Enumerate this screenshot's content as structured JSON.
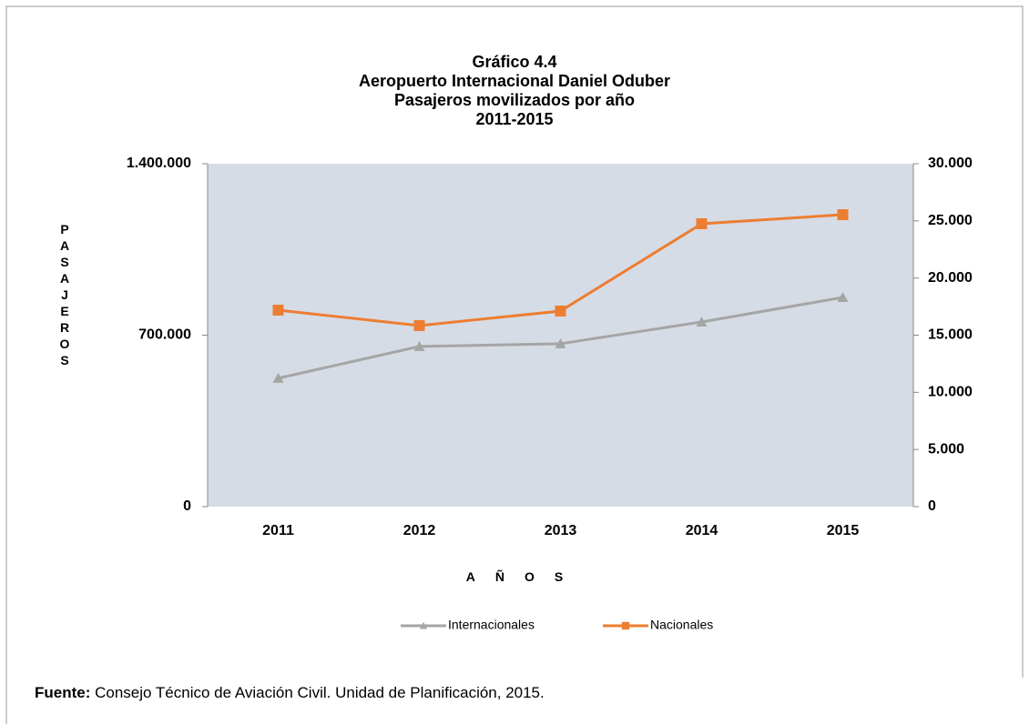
{
  "chart_data": {
    "type": "line",
    "title": [
      "Gráfico 4.4",
      "Aeropuerto Internacional Daniel Oduber",
      "Pasajeros movilizados por año",
      "2011-2015"
    ],
    "categories": [
      "2011",
      "2012",
      "2013",
      "2014",
      "2015"
    ],
    "series": [
      {
        "name": "Internacionales",
        "color": "#a5a5a5",
        "marker": "triangle",
        "axis": "y",
        "values": [
          524000,
          654000,
          665000,
          754000,
          854000
        ]
      },
      {
        "name": "Nacionales",
        "color": "#ed7d31",
        "marker": "square",
        "axis": "y2",
        "values": [
          17190,
          15840,
          17110,
          24750,
          25540
        ]
      }
    ],
    "ylabel": "PASAJEROS",
    "xlabel": "AÑOS",
    "ylim": [
      0,
      1400000
    ],
    "yticks": [
      0,
      {
        "value": 700000,
        "label": "700.000"
      },
      {
        "value": 1400000,
        "label": "1.400.000"
      }
    ],
    "y2lim": [
      0,
      30000
    ],
    "y2ticks": [
      0,
      {
        "value": 5000,
        "label": "5.000"
      },
      {
        "value": 10000,
        "label": "10.000"
      },
      {
        "value": 15000,
        "label": "15.000"
      },
      {
        "value": 20000,
        "label": "20.000"
      },
      {
        "value": 25000,
        "label": "25.000"
      },
      {
        "value": 30000,
        "label": "30.000"
      }
    ],
    "legend": "bottom",
    "source_label": "Fuente:",
    "source": "Consejo Técnico de Aviación Civil. Unidad de Planificación, 2015."
  }
}
